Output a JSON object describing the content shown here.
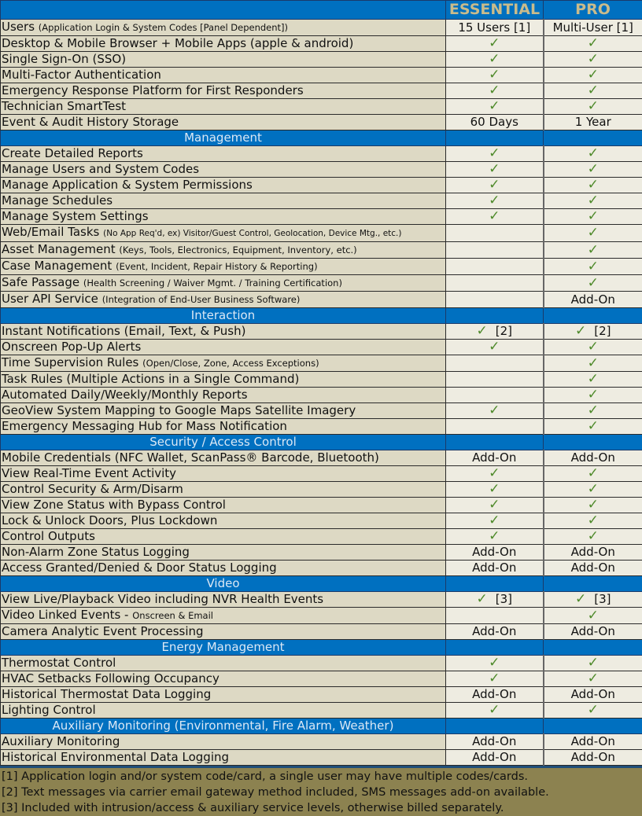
{
  "colors": {
    "header": "#0070c0",
    "header_text": "#c9bb8b",
    "label_bg": "#ddd9c4",
    "value_bg": "#eeece1",
    "check": "#4e8a2a",
    "footer": "#8c8250"
  },
  "columns": [
    "ESSENTIAL",
    "PRO"
  ],
  "rows": [
    {
      "label": "Users",
      "sub": "(Application Login & System Codes [Panel Dependent])",
      "ess": {
        "text": "15 Users [1]"
      },
      "pro": {
        "text": "Multi-User [1]"
      }
    },
    {
      "label": "Desktop & Mobile Browser + Mobile Apps (apple & android)",
      "ess": {
        "check": true
      },
      "pro": {
        "check": true
      }
    },
    {
      "label": "Single Sign-On (SSO)",
      "ess": {
        "check": true
      },
      "pro": {
        "check": true
      }
    },
    {
      "label": "Multi-Factor Authentication",
      "ess": {
        "check": true
      },
      "pro": {
        "check": true
      }
    },
    {
      "label": "Emergency Response Platform for First Responders",
      "ess": {
        "check": true
      },
      "pro": {
        "check": true
      }
    },
    {
      "label": "Technician SmartTest",
      "ess": {
        "check": true
      },
      "pro": {
        "check": true
      }
    },
    {
      "label": "Event & Audit History Storage",
      "ess": {
        "text": "60 Days"
      },
      "pro": {
        "text": "1 Year"
      }
    },
    {
      "section": "Management"
    },
    {
      "label": "Create Detailed Reports",
      "ess": {
        "check": true
      },
      "pro": {
        "check": true
      }
    },
    {
      "label": "Manage Users and System Codes",
      "ess": {
        "check": true
      },
      "pro": {
        "check": true
      }
    },
    {
      "label": "Manage Application & System Permissions",
      "ess": {
        "check": true
      },
      "pro": {
        "check": true
      }
    },
    {
      "label": "Manage Schedules",
      "ess": {
        "check": true
      },
      "pro": {
        "check": true
      }
    },
    {
      "label": "Manage System Settings",
      "ess": {
        "check": true
      },
      "pro": {
        "check": true
      }
    },
    {
      "label": "Web/Email Tasks",
      "sub": "(No App Req'd, ex) Visitor/Guest Control, Geolocation, Device Mtg., etc.)",
      "tiny": true,
      "ess": {},
      "pro": {
        "check": true
      }
    },
    {
      "label": "Asset Management",
      "sub": "(Keys, Tools, Electronics, Equipment, Inventory, etc.)",
      "ess": {},
      "pro": {
        "check": true
      }
    },
    {
      "label": "Case Management",
      "sub": "(Event, Incident, Repair History & Reporting)",
      "ess": {},
      "pro": {
        "check": true
      }
    },
    {
      "label": "Safe Passage",
      "sub": "(Health Screening / Waiver Mgmt. / Training Certification)",
      "ess": {},
      "pro": {
        "check": true
      }
    },
    {
      "label": "User API Service",
      "sub": "(Integration of End-User Business Software)",
      "ess": {},
      "pro": {
        "text": "Add-On"
      }
    },
    {
      "section": "Interaction"
    },
    {
      "label": "Instant Notifications (Email, Text, & Push)",
      "ess": {
        "check": true,
        "note": "[2]"
      },
      "pro": {
        "check": true,
        "note": "[2]"
      }
    },
    {
      "label": "Onscreen Pop-Up Alerts",
      "ess": {
        "check": true
      },
      "pro": {
        "check": true
      }
    },
    {
      "label": "Time Supervision Rules",
      "sub": "(Open/Close, Zone, Access Exceptions)",
      "ess": {},
      "pro": {
        "check": true
      }
    },
    {
      "label": "Task Rules (Multiple Actions in a Single Command)",
      "ess": {},
      "pro": {
        "check": true
      }
    },
    {
      "label": "Automated Daily/Weekly/Monthly Reports",
      "ess": {},
      "pro": {
        "check": true
      }
    },
    {
      "label": "GeoView System Mapping to Google Maps Satellite Imagery",
      "ess": {
        "check": true
      },
      "pro": {
        "check": true
      }
    },
    {
      "label": "Emergency Messaging Hub for Mass Notification",
      "ess": {},
      "pro": {
        "check": true
      }
    },
    {
      "section": "Security / Access Control"
    },
    {
      "label": "Mobile Credentials (NFC Wallet, ScanPass® Barcode, Bluetooth)",
      "ess": {
        "text": "Add-On"
      },
      "pro": {
        "text": "Add-On"
      }
    },
    {
      "label": "View Real-Time Event Activity",
      "ess": {
        "check": true
      },
      "pro": {
        "check": true
      }
    },
    {
      "label": "Control Security & Arm/Disarm",
      "ess": {
        "check": true
      },
      "pro": {
        "check": true
      }
    },
    {
      "label": "View Zone Status with Bypass Control",
      "ess": {
        "check": true
      },
      "pro": {
        "check": true
      }
    },
    {
      "label": "Lock & Unlock Doors, Plus Lockdown",
      "ess": {
        "check": true
      },
      "pro": {
        "check": true
      }
    },
    {
      "label": "Control Outputs",
      "ess": {
        "check": true
      },
      "pro": {
        "check": true
      }
    },
    {
      "label": "Non-Alarm Zone Status Logging",
      "ess": {
        "text": "Add-On"
      },
      "pro": {
        "text": "Add-On"
      }
    },
    {
      "label": "Access Granted/Denied & Door Status Logging",
      "ess": {
        "text": "Add-On"
      },
      "pro": {
        "text": "Add-On"
      }
    },
    {
      "section": "Video"
    },
    {
      "label": "View Live/Playback Video including NVR Health Events",
      "ess": {
        "check": true,
        "note": "[3]"
      },
      "pro": {
        "check": true,
        "note": "[3]"
      }
    },
    {
      "label": "Video Linked Events - ",
      "sub": "Onscreen & Email",
      "ess": {},
      "pro": {
        "check": true
      }
    },
    {
      "label": "Camera Analytic Event Processing",
      "ess": {
        "text": "Add-On"
      },
      "pro": {
        "text": "Add-On"
      }
    },
    {
      "section": "Energy Management"
    },
    {
      "label": "Thermostat Control",
      "ess": {
        "check": true
      },
      "pro": {
        "check": true
      }
    },
    {
      "label": "HVAC Setbacks Following Occupancy",
      "ess": {
        "check": true
      },
      "pro": {
        "check": true
      }
    },
    {
      "label": "Historical Thermostat Data Logging",
      "ess": {
        "text": "Add-On"
      },
      "pro": {
        "text": "Add-On"
      }
    },
    {
      "label": "Lighting Control",
      "ess": {
        "check": true
      },
      "pro": {
        "check": true
      }
    },
    {
      "section": "Auxiliary Monitoring (Environmental, Fire Alarm, Weather)"
    },
    {
      "label": "Auxiliary Monitoring",
      "ess": {
        "text": "Add-On"
      },
      "pro": {
        "text": "Add-On"
      }
    },
    {
      "label": "Historical Environmental Data Logging",
      "ess": {
        "text": "Add-On"
      },
      "pro": {
        "text": "Add-On"
      }
    }
  ],
  "footnotes": [
    "[1] Application login and/or system code/card, a single user may have multiple codes/cards.",
    "[2] Text messages via carrier email gateway method included, SMS messages add-on available.",
    "[3] Included with intrusion/access & auxiliary service levels, otherwise billed separately."
  ]
}
